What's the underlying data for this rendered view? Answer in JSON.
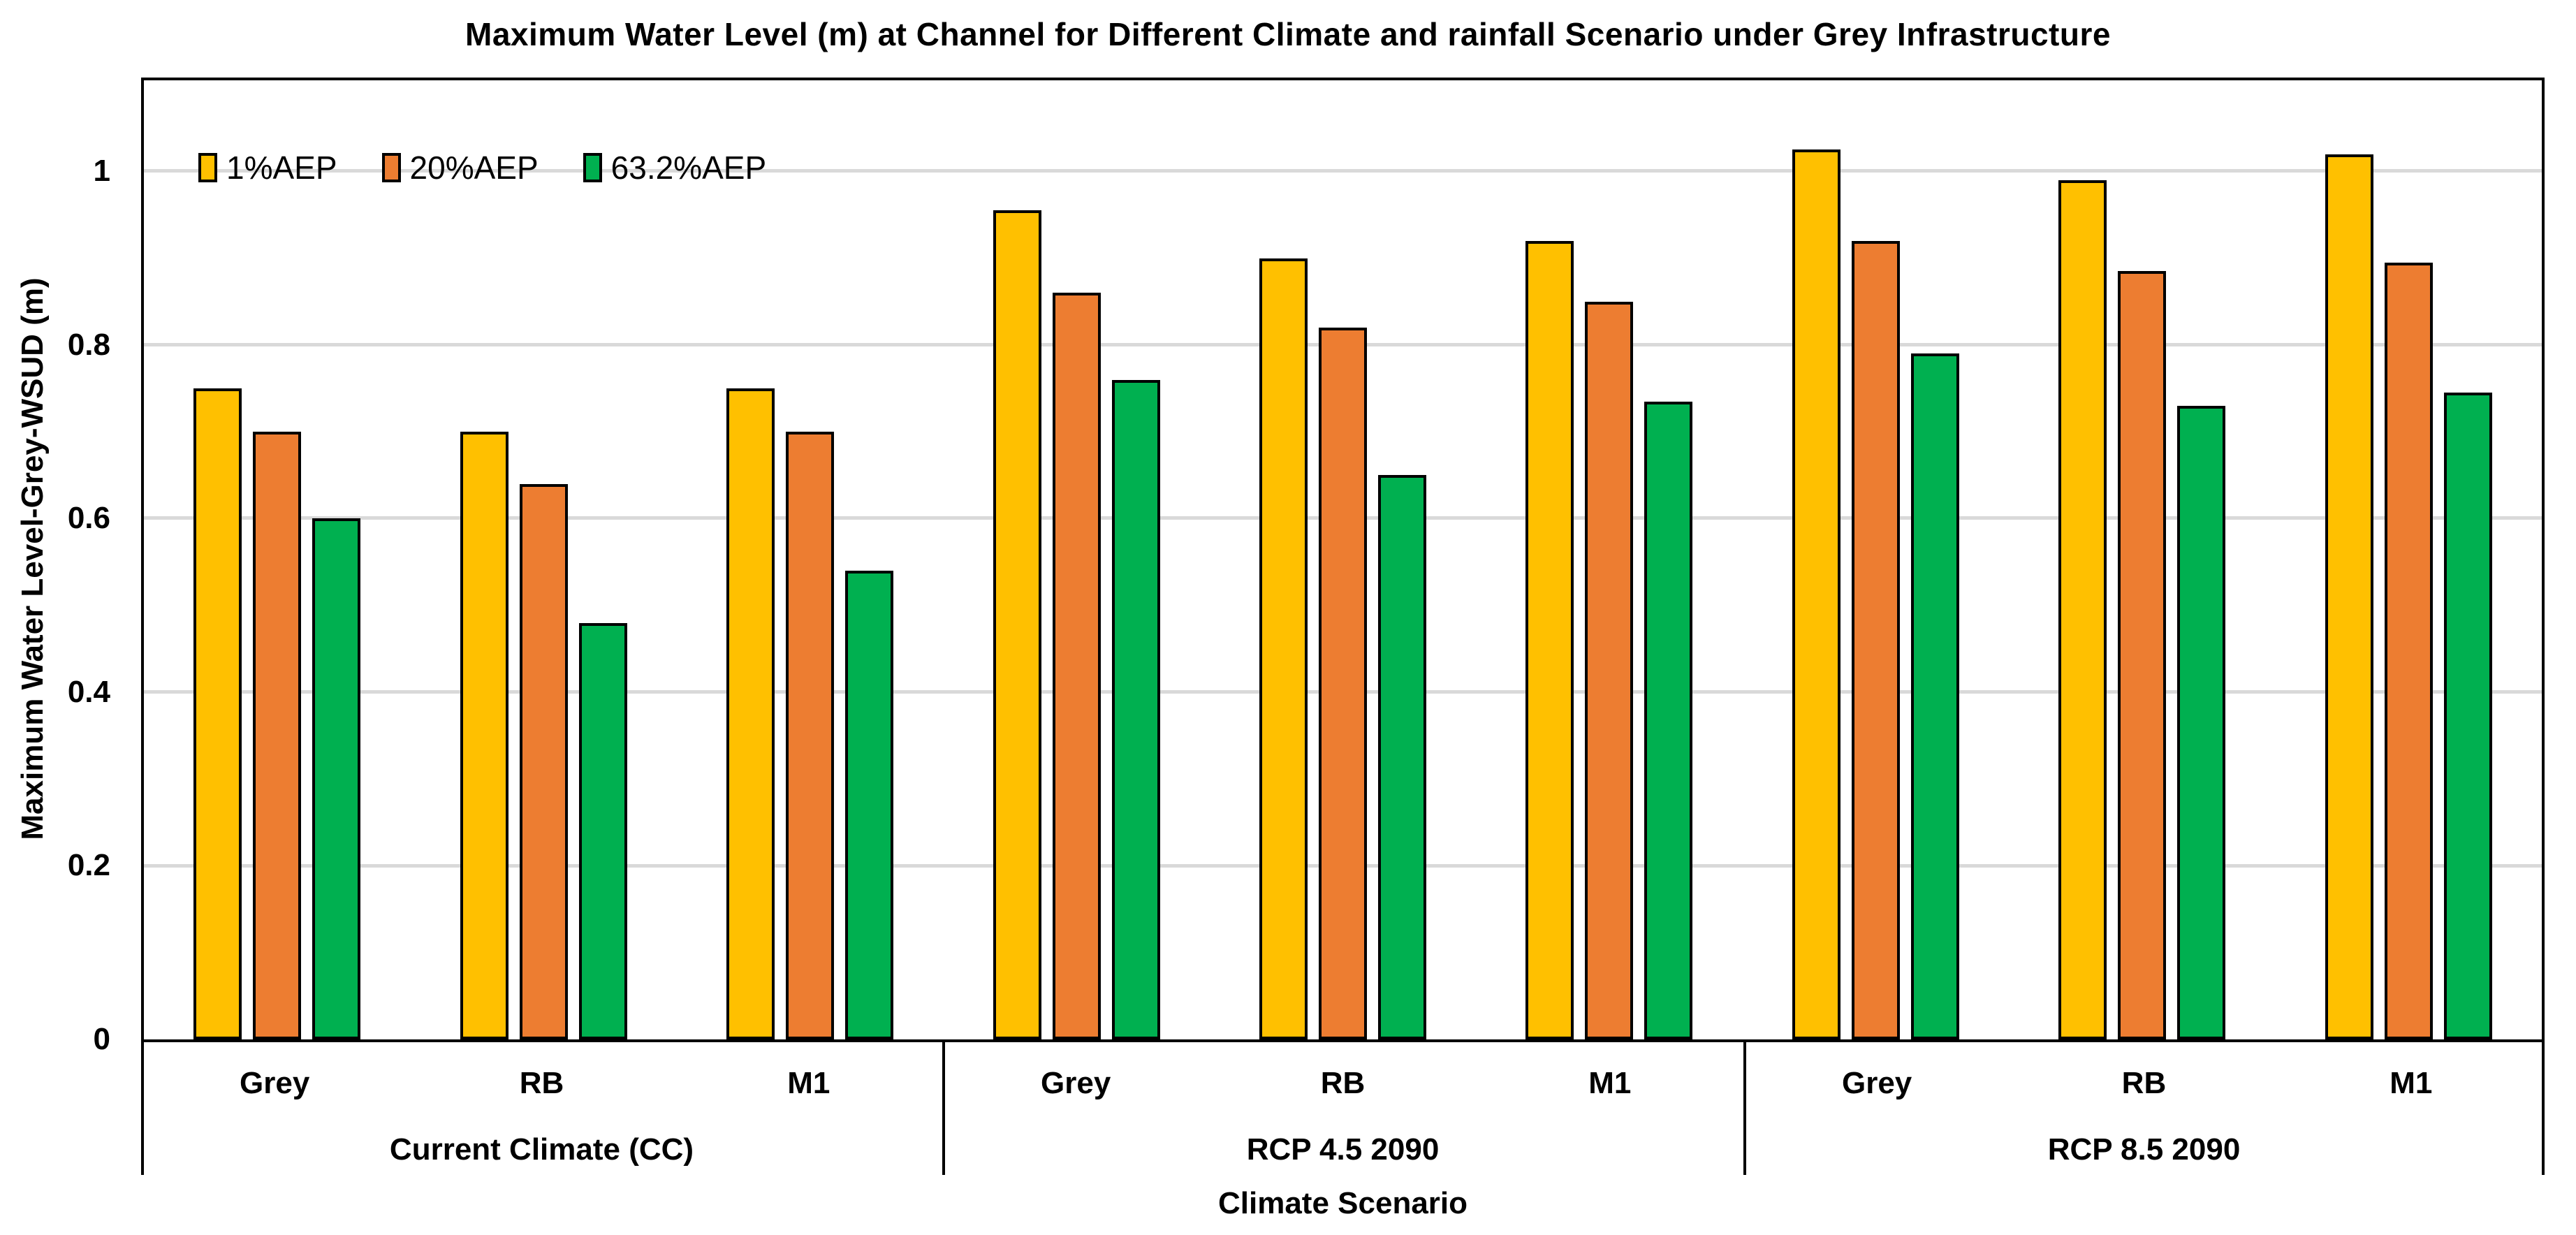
{
  "title": "Maximum Water Level (m) at Channel for Different Climate and rainfall Scenario under Grey Infrastructure",
  "colors": {
    "series_1pct": "#FFC000",
    "series_20pct": "#ED7D31",
    "series_63_2pct": "#00B050",
    "bar_border": "#000000",
    "gridline": "#D9D9D9",
    "axis": "#000000",
    "background": "#FFFFFF",
    "text": "#000000"
  },
  "chart_data": {
    "type": "bar",
    "title": "Maximum Water Level (m) at Channel for Different Climate and rainfall Scenario under Grey Infrastructure",
    "xlabel": "Climate Scenario",
    "ylabel": "Maximum Water Level-Grey-WSUD (m)",
    "ylim": [
      0,
      1.105
    ],
    "grid": "horizontal",
    "legend_position": "inside-top-left",
    "yticks": [
      {
        "value": 0,
        "label": "0"
      },
      {
        "value": 0.2,
        "label": "0.2"
      },
      {
        "value": 0.4,
        "label": "0.4"
      },
      {
        "value": 0.6,
        "label": "0.6"
      },
      {
        "value": 0.8,
        "label": "0.8"
      },
      {
        "value": 1,
        "label": "1"
      }
    ],
    "categories": [
      "Grey",
      "RB",
      "M1",
      "Grey",
      "RB",
      "M1",
      "Grey",
      "RB",
      "M1"
    ],
    "groups": [
      {
        "label": "Current Climate (CC)",
        "span": 3
      },
      {
        "label": "RCP 4.5 2090",
        "span": 3
      },
      {
        "label": "RCP 8.5 2090",
        "span": 3
      }
    ],
    "series": [
      {
        "name": "1%AEP",
        "color": "#FFC000",
        "values": [
          0.75,
          0.7,
          0.75,
          0.955,
          0.9,
          0.92,
          1.025,
          0.99,
          1.02
        ]
      },
      {
        "name": "20%AEP",
        "color": "#ED7D31",
        "values": [
          0.7,
          0.64,
          0.7,
          0.86,
          0.82,
          0.85,
          0.92,
          0.885,
          0.895
        ]
      },
      {
        "name": "63.2%AEP",
        "color": "#00B050",
        "values": [
          0.6,
          0.48,
          0.54,
          0.76,
          0.65,
          0.735,
          0.79,
          0.73,
          0.745
        ]
      }
    ]
  }
}
